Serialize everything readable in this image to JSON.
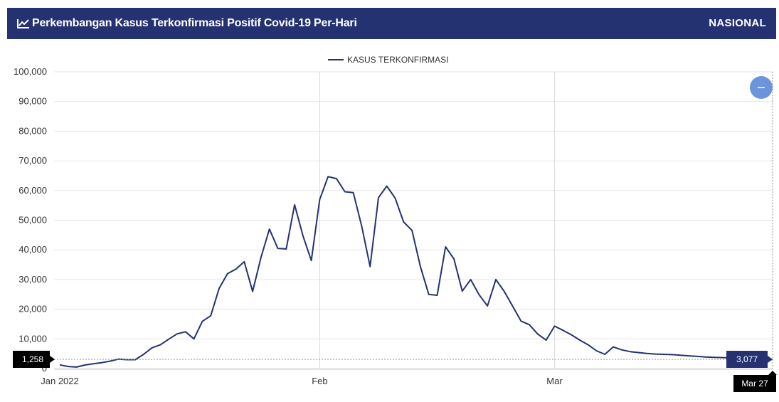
{
  "header": {
    "title": "Perkembangan Kasus Terkonfirmasi Positif Covid-19 Per-Hari",
    "scope": "NASIONAL",
    "icon": "line-chart-icon"
  },
  "colors": {
    "header_bg": "#253272",
    "line": "#253272",
    "grid": "#e6e6e6",
    "zoom_button": "#6a95dd",
    "left_flag": "#000000",
    "right_flag": "#253272",
    "date_flag": "#000000"
  },
  "zoom_button": {
    "icon": "minus-icon"
  },
  "crosshair": {
    "left_value": "1,258",
    "right_value": "3,077",
    "date": "Mar 27"
  },
  "chart_data": {
    "type": "line",
    "title": "",
    "xlabel": "",
    "ylabel": "",
    "x_start": "2022-01-01",
    "x_end": "2022-03-27",
    "ylim": [
      0,
      100000
    ],
    "yticks": [
      0,
      10000,
      20000,
      30000,
      40000,
      50000,
      60000,
      70000,
      80000,
      90000,
      100000
    ],
    "ytick_labels": [
      "0",
      "10,000",
      "20,000",
      "30,000",
      "40,000",
      "50,000",
      "60,000",
      "70,000",
      "80,000",
      "90,000",
      "100,000"
    ],
    "xticks": [
      "2022-01-01",
      "2022-02-01",
      "2022-03-01"
    ],
    "xtick_labels": [
      "Jan 2022",
      "Feb",
      "Mar"
    ],
    "grid": true,
    "legend_position": "top-center",
    "series": [
      {
        "name": "KASUS TERKONFIRMASI",
        "points": [
          [
            "2022-01-01",
            1258
          ],
          [
            "2022-01-02",
            700
          ],
          [
            "2022-01-03",
            500
          ],
          [
            "2022-01-04",
            1200
          ],
          [
            "2022-01-05",
            1600
          ],
          [
            "2022-01-06",
            2000
          ],
          [
            "2022-01-07",
            2500
          ],
          [
            "2022-01-08",
            3200
          ],
          [
            "2022-01-09",
            3000
          ],
          [
            "2022-01-10",
            3000
          ],
          [
            "2022-01-11",
            4800
          ],
          [
            "2022-01-12",
            7000
          ],
          [
            "2022-01-13",
            8000
          ],
          [
            "2022-01-14",
            9900
          ],
          [
            "2022-01-15",
            11700
          ],
          [
            "2022-01-16",
            12400
          ],
          [
            "2022-01-17",
            10000
          ],
          [
            "2022-01-18",
            15900
          ],
          [
            "2022-01-19",
            17800
          ],
          [
            "2022-01-20",
            27000
          ],
          [
            "2022-01-21",
            32000
          ],
          [
            "2022-01-22",
            33500
          ],
          [
            "2022-01-23",
            36000
          ],
          [
            "2022-01-24",
            26000
          ],
          [
            "2022-01-25",
            37500
          ],
          [
            "2022-01-26",
            47000
          ],
          [
            "2022-01-27",
            40500
          ],
          [
            "2022-01-28",
            40300
          ],
          [
            "2022-01-29",
            55200
          ],
          [
            "2022-01-30",
            44700
          ],
          [
            "2022-01-31",
            36400
          ],
          [
            "2022-02-01",
            57000
          ],
          [
            "2022-02-02",
            64700
          ],
          [
            "2022-02-03",
            64000
          ],
          [
            "2022-02-04",
            59600
          ],
          [
            "2022-02-05",
            59300
          ],
          [
            "2022-02-06",
            48000
          ],
          [
            "2022-02-07",
            34400
          ],
          [
            "2022-02-08",
            57600
          ],
          [
            "2022-02-09",
            61500
          ],
          [
            "2022-02-10",
            57400
          ],
          [
            "2022-02-11",
            49400
          ],
          [
            "2022-02-12",
            46600
          ],
          [
            "2022-02-13",
            34400
          ],
          [
            "2022-02-14",
            25000
          ],
          [
            "2022-02-15",
            24700
          ],
          [
            "2022-02-16",
            41000
          ],
          [
            "2022-02-17",
            37000
          ],
          [
            "2022-02-18",
            26100
          ],
          [
            "2022-02-19",
            30000
          ],
          [
            "2022-02-20",
            24900
          ],
          [
            "2022-02-21",
            21100
          ],
          [
            "2022-02-22",
            30000
          ],
          [
            "2022-02-23",
            26000
          ],
          [
            "2022-02-24",
            21000
          ],
          [
            "2022-02-25",
            16000
          ],
          [
            "2022-02-26",
            14800
          ],
          [
            "2022-02-27",
            11600
          ],
          [
            "2022-02-28",
            9600
          ],
          [
            "2022-03-01",
            14300
          ],
          [
            "2022-03-02",
            12900
          ],
          [
            "2022-03-03",
            11400
          ],
          [
            "2022-03-04",
            9600
          ],
          [
            "2022-03-05",
            8000
          ],
          [
            "2022-03-06",
            6000
          ],
          [
            "2022-03-07",
            4800
          ],
          [
            "2022-03-08",
            7300
          ],
          [
            "2022-03-09",
            6300
          ],
          [
            "2022-03-10",
            5700
          ],
          [
            "2022-03-11",
            5400
          ],
          [
            "2022-03-12",
            5100
          ],
          [
            "2022-03-13",
            4900
          ],
          [
            "2022-03-14",
            4800
          ],
          [
            "2022-03-15",
            4700
          ],
          [
            "2022-03-16",
            4500
          ],
          [
            "2022-03-17",
            4300
          ],
          [
            "2022-03-18",
            4100
          ],
          [
            "2022-03-19",
            3900
          ],
          [
            "2022-03-20",
            3800
          ],
          [
            "2022-03-21",
            3700
          ],
          [
            "2022-03-22",
            3600
          ],
          [
            "2022-03-23",
            3400
          ],
          [
            "2022-03-24",
            3300
          ],
          [
            "2022-03-25",
            3200
          ],
          [
            "2022-03-26",
            3100
          ],
          [
            "2022-03-27",
            3077
          ]
        ]
      }
    ]
  }
}
